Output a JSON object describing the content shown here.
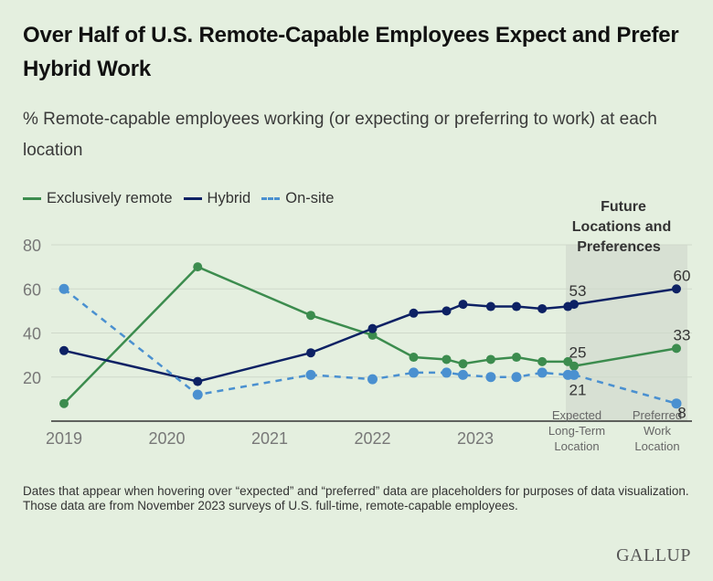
{
  "title": "Over Half of U.S. Remote-Capable Employees Expect and Prefer Hybrid Work",
  "subtitle": "% Remote-capable employees working (or expecting or preferring to work) at each location",
  "legend": [
    {
      "label": "Exclusively remote",
      "color": "#3c8c4e",
      "style": "solid"
    },
    {
      "label": "Hybrid",
      "color": "#0d2164",
      "style": "solid"
    },
    {
      "label": "On-site",
      "color": "#4a90d0",
      "style": "dashed"
    }
  ],
  "future_label": "Future Locations and Preferences",
  "footnote": "Dates that appear when hovering over “expected” and “preferred” data are placeholders for purposes of data visualization. Those data are from November 2023 surveys of U.S. full-time, remote-capable employees.",
  "logo": "GALLUP",
  "chart_data": {
    "type": "line",
    "title": "Over Half of U.S. Remote-Capable Employees Expect and Prefer Hybrid Work",
    "subtitle": "% Remote-capable employees working (or expecting or preferring to work) at each location",
    "xlabel": "",
    "ylabel": "",
    "ylim": [
      0,
      80
    ],
    "yticks": [
      20,
      40,
      60,
      80
    ],
    "grid": true,
    "legend_position": "top-left",
    "xtick_labels": [
      {
        "label": "2019",
        "x": 2019.0
      },
      {
        "label": "2020",
        "x": 2020.0
      },
      {
        "label": "2021",
        "x": 2021.0
      },
      {
        "label": "2022",
        "x": 2022.0
      },
      {
        "label": "2023",
        "x": 2023.0
      }
    ],
    "future_categories": [
      "Expected Long-Term Location",
      "Preferred Work Location"
    ],
    "x": [
      2019.0,
      2020.3,
      2021.4,
      2022.0,
      2022.4,
      2022.72,
      2022.88,
      2023.15,
      2023.4,
      2023.65,
      2023.9
    ],
    "series": [
      {
        "name": "Exclusively remote",
        "color": "#3c8c4e",
        "style": "solid",
        "values": [
          8,
          70,
          48,
          39,
          29,
          28,
          26,
          28,
          29,
          27,
          27
        ],
        "future": [
          25,
          33
        ]
      },
      {
        "name": "Hybrid",
        "color": "#0d2164",
        "style": "solid",
        "values": [
          32,
          18,
          31,
          42,
          49,
          50,
          53,
          52,
          52,
          51,
          52
        ],
        "future": [
          53,
          60
        ]
      },
      {
        "name": "On-site",
        "color": "#4a90d0",
        "style": "dashed",
        "values": [
          60,
          12,
          21,
          19,
          22,
          22,
          21,
          20,
          20,
          22,
          21
        ],
        "future": [
          21,
          8
        ]
      }
    ],
    "data_labels": {
      "Exclusively remote": [
        "25",
        "33"
      ],
      "Hybrid": [
        "53",
        "60"
      ],
      "On-site": [
        "21",
        "8"
      ]
    }
  }
}
